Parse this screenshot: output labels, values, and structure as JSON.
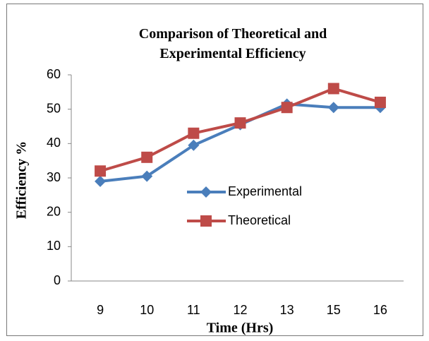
{
  "chart_data": {
    "type": "line",
    "title": "Comparison of Theoretical and Experimental Efficiency",
    "x_label": "Time (Hrs)",
    "y_label": "Efficiency %",
    "categories": [
      "9",
      "10",
      "11",
      "12",
      "13",
      "15",
      "16"
    ],
    "series": [
      {
        "name": "Experimental",
        "color": "#4a7ebb",
        "marker": "diamond",
        "values": [
          29,
          30.5,
          39.5,
          45.5,
          51.5,
          50.5,
          50.5
        ]
      },
      {
        "name": "Theoretical",
        "color": "#be4b48",
        "marker": "square",
        "values": [
          32,
          36,
          43,
          46,
          50.5,
          56,
          52
        ]
      }
    ],
    "ylim": [
      0,
      60
    ],
    "yticks": [
      0,
      10,
      20,
      30,
      40,
      50,
      60
    ],
    "grid": false
  }
}
